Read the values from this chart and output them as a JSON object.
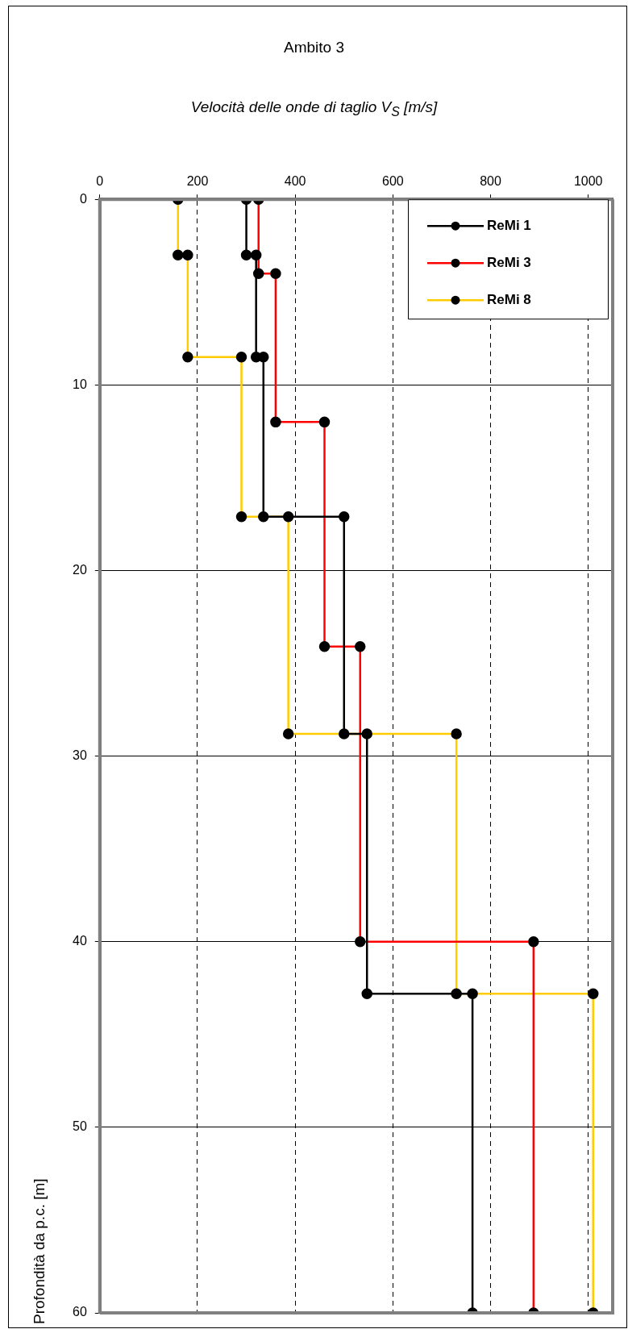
{
  "chart_data": {
    "type": "line",
    "title": "Ambito 3",
    "xlabel": "Velocità delle onde di taglio V$_{S}$ [m/s]",
    "ylabel": "Profondità da p.c. [m]",
    "xlim": [
      0,
      1050
    ],
    "xticks": [
      0,
      200,
      400,
      600,
      800,
      1000
    ],
    "ylim": [
      60,
      0
    ],
    "yticks": [
      0,
      10,
      20,
      30,
      40,
      50,
      60
    ],
    "grid": true,
    "legend": "top right",
    "marker": "circle",
    "line_style": "solid",
    "series": [
      {
        "name": "ReMi 1",
        "color": "#000000",
        "x": [
          300,
          300,
          320,
          320,
          335,
          335,
          500,
          500,
          547,
          547,
          763,
          763
        ],
        "values": [
          0,
          3,
          3,
          8.5,
          8.5,
          17.1,
          17.1,
          28.8,
          28.8,
          42.8,
          42.8,
          60
        ]
      },
      {
        "name": "ReMi 3",
        "color": "#ff0000",
        "x": [
          325,
          325,
          360,
          360,
          460,
          460,
          533,
          533,
          888,
          888
        ],
        "values": [
          0,
          4,
          4,
          12,
          12,
          24.1,
          24.1,
          40,
          40,
          60
        ]
      },
      {
        "name": "ReMi 8",
        "color": "#ffcc00",
        "x": [
          160,
          160,
          180,
          180,
          290,
          290,
          386,
          386,
          730,
          730,
          1010,
          1010
        ],
        "values": [
          0,
          3,
          3,
          8.5,
          8.5,
          17.1,
          17.1,
          28.8,
          28.8,
          42.8,
          42.8,
          60
        ]
      }
    ]
  }
}
